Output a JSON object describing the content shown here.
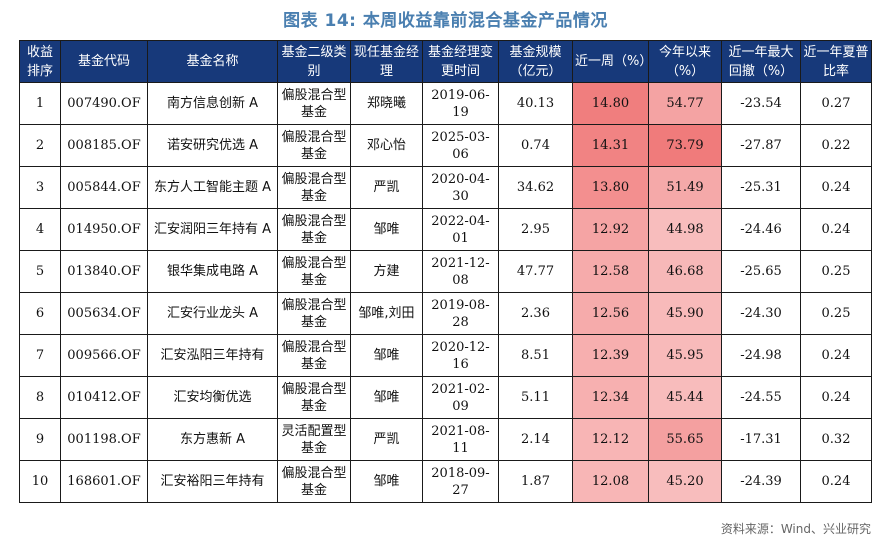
{
  "title": "图表 14: 本周收益靠前混合基金产品情况",
  "headers": [
    "收益排序",
    "基金代码",
    "基金名称",
    "基金二级类别",
    "现任基金经理",
    "基金经理变更时间",
    "基金规模（亿元）",
    "近一周（%）",
    "今年以来（%）",
    "近一年最大回撤（%）",
    "近一年夏普比率"
  ],
  "rows": [
    {
      "rank": "1",
      "code": "007490.OF",
      "name": "南方信息创新 A",
      "type": "偏股混合型基金",
      "manager": "郑晓曦",
      "date": "2019-06-19",
      "scale": "40.13",
      "week": "14.80",
      "ytd": "54.77",
      "mdd": "-23.54",
      "sharpe": "0.27",
      "week_color": "#f07e7e",
      "ytd_color": "#f4a3a3"
    },
    {
      "rank": "2",
      "code": "008185.OF",
      "name": "诺安研究优选 A",
      "type": "偏股混合型基金",
      "manager": "邓心怡",
      "date": "2025-03-06",
      "scale": "0.74",
      "week": "14.31",
      "ytd": "73.79",
      "mdd": "-27.87",
      "sharpe": "0.22",
      "week_color": "#f18383",
      "ytd_color": "#f07b7b"
    },
    {
      "rank": "3",
      "code": "005844.OF",
      "name": "东方人工智能主题 A",
      "type": "偏股混合型基金",
      "manager": "严凯",
      "date": "2020-04-30",
      "scale": "34.62",
      "week": "13.80",
      "ytd": "51.49",
      "mdd": "-25.31",
      "sharpe": "0.24",
      "week_color": "#f38f8f",
      "ytd_color": "#f5a9a9"
    },
    {
      "rank": "4",
      "code": "014950.OF",
      "name": "汇安润阳三年持有 A",
      "type": "偏股混合型基金",
      "manager": "邹唯",
      "date": "2022-04-01",
      "scale": "2.95",
      "week": "12.92",
      "ytd": "44.98",
      "mdd": "-24.46",
      "sharpe": "0.24",
      "week_color": "#f5a4a4",
      "ytd_color": "#f8bdbd"
    },
    {
      "rank": "5",
      "code": "013840.OF",
      "name": "银华集成电路 A",
      "type": "偏股混合型基金",
      "manager": "方建",
      "date": "2021-12-08",
      "scale": "47.77",
      "week": "12.58",
      "ytd": "46.68",
      "mdd": "-25.65",
      "sharpe": "0.25",
      "week_color": "#f6abab",
      "ytd_color": "#f7b8b8"
    },
    {
      "rank": "6",
      "code": "005634.OF",
      "name": "汇安行业龙头 A",
      "type": "偏股混合型基金",
      "manager": "邹唯,刘田",
      "date": "2019-08-28",
      "scale": "2.36",
      "week": "12.56",
      "ytd": "45.90",
      "mdd": "-24.30",
      "sharpe": "0.25",
      "week_color": "#f6abab",
      "ytd_color": "#f8baba"
    },
    {
      "rank": "7",
      "code": "009566.OF",
      "name": "汇安泓阳三年持有",
      "type": "偏股混合型基金",
      "manager": "邹唯",
      "date": "2020-12-16",
      "scale": "8.51",
      "week": "12.39",
      "ytd": "45.95",
      "mdd": "-24.98",
      "sharpe": "0.24",
      "week_color": "#f7afaf",
      "ytd_color": "#f8baba"
    },
    {
      "rank": "8",
      "code": "010412.OF",
      "name": "汇安均衡优选",
      "type": "偏股混合型基金",
      "manager": "邹唯",
      "date": "2021-02-09",
      "scale": "5.11",
      "week": "12.34",
      "ytd": "45.44",
      "mdd": "-24.55",
      "sharpe": "0.24",
      "week_color": "#f7b0b0",
      "ytd_color": "#f8bcbc"
    },
    {
      "rank": "9",
      "code": "001198.OF",
      "name": "东方惠新 A",
      "type": "灵活配置型基金",
      "manager": "严凯",
      "date": "2021-08-11",
      "scale": "2.14",
      "week": "12.12",
      "ytd": "55.65",
      "mdd": "-17.31",
      "sharpe": "0.32",
      "week_color": "#f8b5b5",
      "ytd_color": "#f4a0a0"
    },
    {
      "rank": "10",
      "code": "168601.OF",
      "name": "汇安裕阳三年持有",
      "type": "偏股混合型基金",
      "manager": "邹唯",
      "date": "2018-09-27",
      "scale": "1.87",
      "week": "12.08",
      "ytd": "45.20",
      "mdd": "-24.39",
      "sharpe": "0.24",
      "week_color": "#f8b6b6",
      "ytd_color": "#f8bdbd"
    }
  ],
  "source": "资料来源：Wind、兴业研究"
}
